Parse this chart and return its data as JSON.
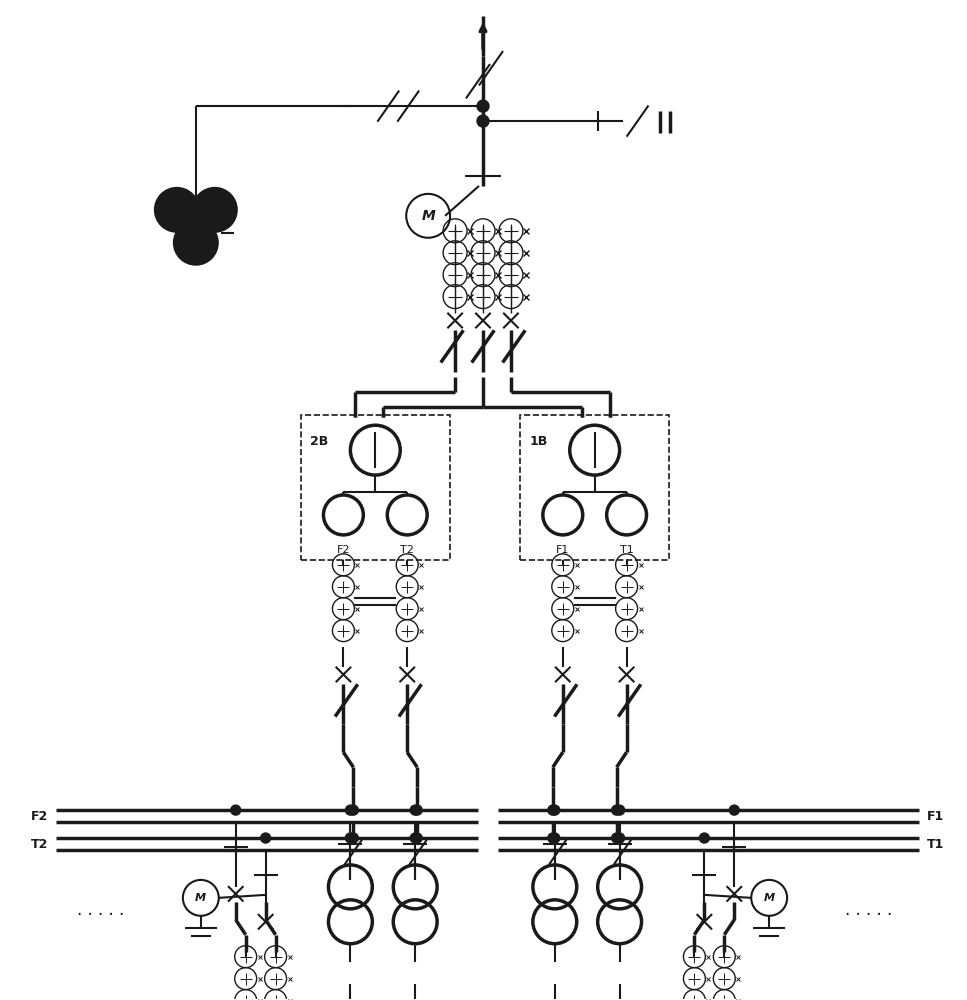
{
  "bg_color": "#ffffff",
  "line_color": "#1a1a1a",
  "figsize": [
    9.67,
    10.0
  ],
  "dpi": 100,
  "xlim": [
    0,
    967
  ],
  "ylim": [
    0,
    1000
  ]
}
